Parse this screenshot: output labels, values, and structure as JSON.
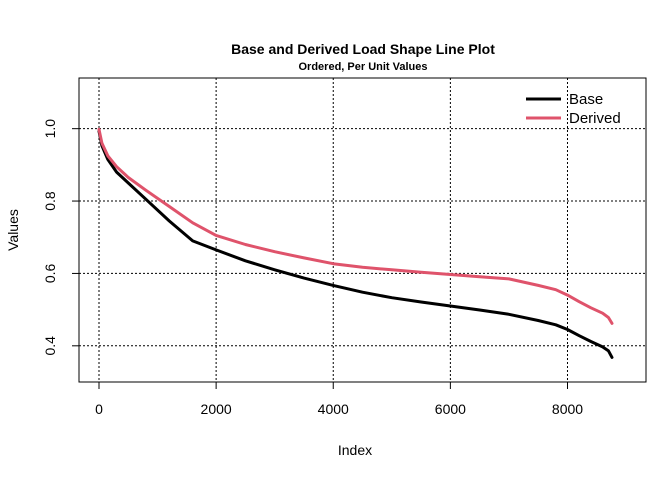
{
  "chart_data": {
    "type": "line",
    "title": "Base and Derived Load Shape Line Plot",
    "subtitle": "Ordered, Per Unit Values",
    "xlabel": "Index",
    "ylabel": "Values",
    "xlim": [
      0,
      8760
    ],
    "ylim": [
      0.3,
      1.14
    ],
    "grid": true,
    "legend_position": "top-right",
    "x_ticks": [
      0,
      2000,
      4000,
      6000,
      8000
    ],
    "x_tick_labels": [
      "0",
      "2000",
      "4000",
      "6000",
      "8000"
    ],
    "y_ticks": [
      0.4,
      0.6,
      0.8,
      1.0
    ],
    "y_tick_labels": [
      "0.4",
      "0.6",
      "0.8",
      "1.0"
    ],
    "x": [
      0,
      50,
      150,
      300,
      500,
      800,
      1200,
      1600,
      2000,
      2500,
      3000,
      3500,
      4000,
      4500,
      5000,
      5500,
      6000,
      6500,
      7000,
      7500,
      7800,
      8000,
      8200,
      8400,
      8600,
      8700,
      8760
    ],
    "series": [
      {
        "name": "Base",
        "color": "#000000",
        "values": [
          0.993,
          0.953,
          0.915,
          0.88,
          0.85,
          0.805,
          0.745,
          0.69,
          0.665,
          0.635,
          0.61,
          0.587,
          0.567,
          0.548,
          0.533,
          0.521,
          0.51,
          0.499,
          0.487,
          0.47,
          0.458,
          0.445,
          0.428,
          0.412,
          0.397,
          0.386,
          0.368
        ]
      },
      {
        "name": "Derived",
        "color": "#df536b",
        "values": [
          0.998,
          0.96,
          0.925,
          0.895,
          0.865,
          0.83,
          0.785,
          0.74,
          0.705,
          0.68,
          0.66,
          0.643,
          0.627,
          0.617,
          0.61,
          0.603,
          0.597,
          0.591,
          0.585,
          0.567,
          0.555,
          0.54,
          0.522,
          0.505,
          0.49,
          0.478,
          0.462
        ]
      }
    ]
  }
}
